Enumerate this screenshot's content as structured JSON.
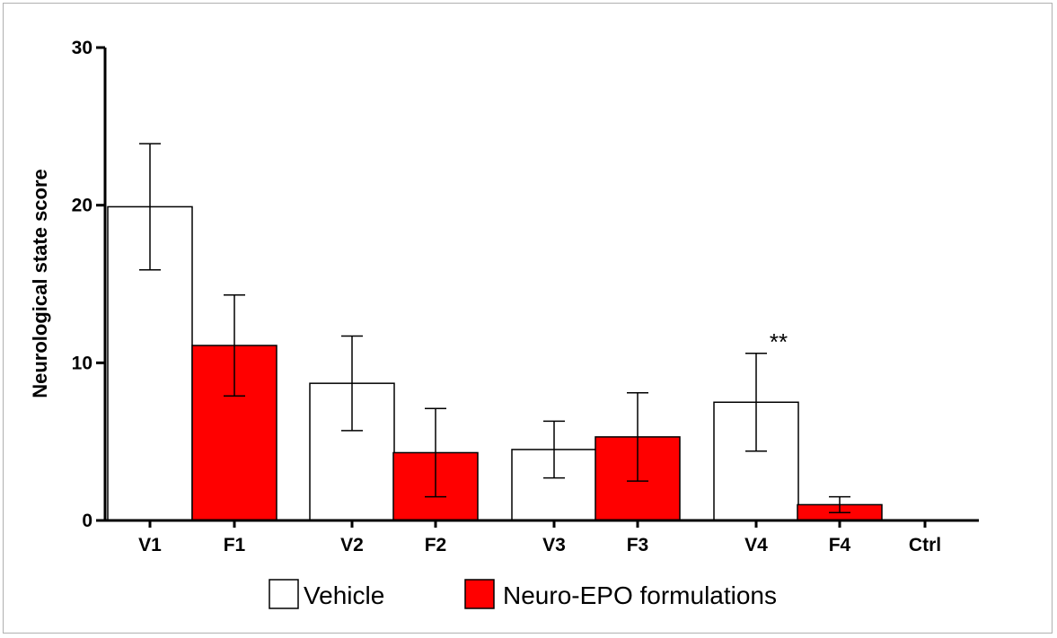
{
  "chart_data": {
    "type": "bar",
    "ylabel": "Neurological state score",
    "xlabel": "",
    "ylim": [
      0,
      30
    ],
    "yticks": [
      0,
      10,
      20,
      30
    ],
    "grid": false,
    "legend_position": "bottom",
    "categories": [
      "V1",
      "F1",
      "V2",
      "F2",
      "V3",
      "F3",
      "V4",
      "F4",
      "Ctrl"
    ],
    "values": [
      19.9,
      11.1,
      8.7,
      4.3,
      4.5,
      5.3,
      7.5,
      1.0,
      0
    ],
    "error": [
      4.0,
      3.2,
      3.0,
      2.8,
      1.8,
      2.8,
      3.1,
      0.5,
      0
    ],
    "groups": [
      "Vehicle",
      "Neuro-EPO formulations",
      "Vehicle",
      "Neuro-EPO formulations",
      "Vehicle",
      "Neuro-EPO formulations",
      "Vehicle",
      "Neuro-EPO formulations",
      "Ctrl"
    ],
    "legend": [
      {
        "name": "Vehicle",
        "color": "#ffffff"
      },
      {
        "name": "Neuro-EPO formulations",
        "color": "#ff0000"
      }
    ],
    "annotations": [
      {
        "category": "V4",
        "text": "**"
      }
    ]
  }
}
